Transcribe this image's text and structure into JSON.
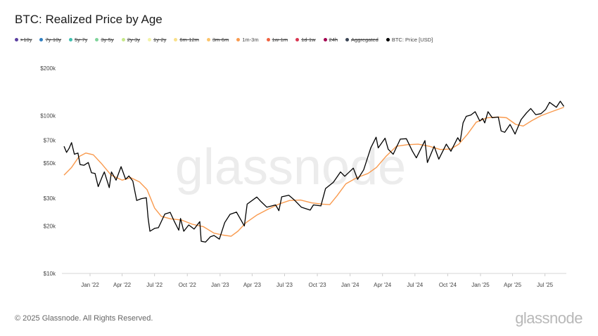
{
  "title": "BTC: Realized Price by Age",
  "legend": [
    {
      "label": ">10y",
      "color": "#5b3fa0",
      "enabled": false
    },
    {
      "label": "7y-10y",
      "color": "#2f7fc1",
      "enabled": false
    },
    {
      "label": "5y-7y",
      "color": "#3fbfae",
      "enabled": false
    },
    {
      "label": "3y-5y",
      "color": "#7fd49a",
      "enabled": false
    },
    {
      "label": "2y-3y",
      "color": "#c6e88a",
      "enabled": false
    },
    {
      "label": "1y-2y",
      "color": "#f3f3a8",
      "enabled": false
    },
    {
      "label": "6m-12m",
      "color": "#f9e08a",
      "enabled": false
    },
    {
      "label": "3m-6m",
      "color": "#fcc46a",
      "enabled": false
    },
    {
      "label": "1m-3m",
      "color": "#f99a4e",
      "enabled": true
    },
    {
      "label": "1w-1m",
      "color": "#f0623f",
      "enabled": false
    },
    {
      "label": "1d-1w",
      "color": "#d93550",
      "enabled": false
    },
    {
      "label": "24h",
      "color": "#a3004f",
      "enabled": false
    },
    {
      "label": "Aggregated",
      "color": "#3b4555",
      "enabled": false
    },
    {
      "label": "BTC: Price [USD]",
      "color": "#000000",
      "enabled": true
    }
  ],
  "watermark": "glassnode",
  "footer": {
    "copyright": "© 2025 Glassnode. All Rights Reserved.",
    "logo": "glassnode"
  },
  "chart_data": {
    "type": "line",
    "title": "BTC: Realized Price by Age",
    "yscale": "log",
    "ylim": [
      10000,
      200000
    ],
    "xlim": [
      "2021-10-14",
      "2025-08-30"
    ],
    "grid": false,
    "legend_position": "top-left",
    "y_ticks": [
      {
        "value": 10000,
        "label": "$10k"
      },
      {
        "value": 20000,
        "label": "$20k"
      },
      {
        "value": 30000,
        "label": "$30k"
      },
      {
        "value": 50000,
        "label": "$50k"
      },
      {
        "value": 70000,
        "label": "$70k"
      },
      {
        "value": 100000,
        "label": "$100k"
      },
      {
        "value": 200000,
        "label": "$200k"
      }
    ],
    "x_ticks": [
      {
        "value": "2022-01-01",
        "label": "Jan '22"
      },
      {
        "value": "2022-04-01",
        "label": "Apr '22"
      },
      {
        "value": "2022-07-01",
        "label": "Jul '22"
      },
      {
        "value": "2022-10-01",
        "label": "Oct '22"
      },
      {
        "value": "2023-01-01",
        "label": "Jan '23"
      },
      {
        "value": "2023-04-01",
        "label": "Apr '23"
      },
      {
        "value": "2023-07-01",
        "label": "Jul '23"
      },
      {
        "value": "2023-10-01",
        "label": "Oct '23"
      },
      {
        "value": "2024-01-01",
        "label": "Jan '24"
      },
      {
        "value": "2024-04-01",
        "label": "Apr '24"
      },
      {
        "value": "2024-07-01",
        "label": "Jul '24"
      },
      {
        "value": "2024-10-01",
        "label": "Oct '24"
      },
      {
        "value": "2025-01-01",
        "label": "Jan '25"
      },
      {
        "value": "2025-04-01",
        "label": "Apr '25"
      },
      {
        "value": "2025-07-01",
        "label": "Jul '25"
      }
    ],
    "series": [
      {
        "name": "1m-3m",
        "color": "#f99a4e",
        "points": [
          [
            "2021-10-20",
            42000
          ],
          [
            "2021-11-10",
            47000
          ],
          [
            "2021-12-01",
            55000
          ],
          [
            "2021-12-20",
            58000
          ],
          [
            "2022-01-10",
            56500
          ],
          [
            "2022-02-01",
            50000
          ],
          [
            "2022-03-01",
            42000
          ],
          [
            "2022-04-01",
            39000
          ],
          [
            "2022-04-25",
            40500
          ],
          [
            "2022-05-20",
            38000
          ],
          [
            "2022-06-10",
            34000
          ],
          [
            "2022-07-01",
            26000
          ],
          [
            "2022-07-20",
            23000
          ],
          [
            "2022-08-15",
            22200
          ],
          [
            "2022-09-15",
            21800
          ],
          [
            "2022-10-15",
            20500
          ],
          [
            "2022-11-15",
            19800
          ],
          [
            "2022-12-15",
            18000
          ],
          [
            "2023-01-10",
            17500
          ],
          [
            "2023-02-01",
            17200
          ],
          [
            "2023-02-20",
            18500
          ],
          [
            "2023-03-15",
            21000
          ],
          [
            "2023-04-15",
            23500
          ],
          [
            "2023-05-15",
            25500
          ],
          [
            "2023-06-15",
            27500
          ],
          [
            "2023-07-15",
            29000
          ],
          [
            "2023-08-15",
            29200
          ],
          [
            "2023-09-15",
            28000
          ],
          [
            "2023-10-15",
            27500
          ],
          [
            "2023-11-05",
            27300
          ],
          [
            "2023-11-25",
            31000
          ],
          [
            "2023-12-20",
            37000
          ],
          [
            "2024-01-20",
            40500
          ],
          [
            "2024-02-20",
            43000
          ],
          [
            "2024-03-15",
            47000
          ],
          [
            "2024-04-10",
            55000
          ],
          [
            "2024-05-10",
            64000
          ],
          [
            "2024-06-10",
            65500
          ],
          [
            "2024-07-10",
            66000
          ],
          [
            "2024-08-10",
            64000
          ],
          [
            "2024-09-10",
            61000
          ],
          [
            "2024-10-10",
            61500
          ],
          [
            "2024-11-01",
            66000
          ],
          [
            "2024-11-25",
            76000
          ],
          [
            "2024-12-20",
            91000
          ],
          [
            "2025-01-20",
            97000
          ],
          [
            "2025-02-20",
            98000
          ],
          [
            "2025-03-15",
            97000
          ],
          [
            "2025-04-10",
            88000
          ],
          [
            "2025-05-01",
            86000
          ],
          [
            "2025-05-25",
            93000
          ],
          [
            "2025-06-20",
            100000
          ],
          [
            "2025-07-20",
            106000
          ],
          [
            "2025-08-23",
            113000
          ]
        ]
      },
      {
        "name": "BTC: Price [USD]",
        "color": "#000000",
        "points": [
          [
            "2021-10-20",
            64000
          ],
          [
            "2021-10-27",
            58500
          ],
          [
            "2021-11-03",
            62000
          ],
          [
            "2021-11-10",
            67500
          ],
          [
            "2021-11-18",
            57000
          ],
          [
            "2021-11-28",
            58000
          ],
          [
            "2021-12-04",
            49000
          ],
          [
            "2021-12-15",
            48500
          ],
          [
            "2021-12-27",
            50500
          ],
          [
            "2022-01-05",
            43500
          ],
          [
            "2022-01-15",
            43000
          ],
          [
            "2022-01-24",
            35500
          ],
          [
            "2022-02-05",
            41500
          ],
          [
            "2022-02-10",
            44000
          ],
          [
            "2022-02-24",
            35000
          ],
          [
            "2022-03-02",
            44000
          ],
          [
            "2022-03-15",
            39000
          ],
          [
            "2022-03-29",
            47500
          ],
          [
            "2022-04-11",
            39500
          ],
          [
            "2022-04-20",
            41500
          ],
          [
            "2022-05-01",
            38500
          ],
          [
            "2022-05-12",
            29000
          ],
          [
            "2022-05-25",
            29800
          ],
          [
            "2022-06-08",
            30200
          ],
          [
            "2022-06-13",
            22500
          ],
          [
            "2022-06-18",
            18500
          ],
          [
            "2022-07-01",
            19300
          ],
          [
            "2022-07-12",
            19500
          ],
          [
            "2022-07-30",
            23800
          ],
          [
            "2022-08-14",
            24400
          ],
          [
            "2022-08-25",
            21500
          ],
          [
            "2022-09-07",
            18800
          ],
          [
            "2022-09-12",
            22300
          ],
          [
            "2022-09-21",
            18500
          ],
          [
            "2022-10-05",
            20300
          ],
          [
            "2022-10-20",
            19100
          ],
          [
            "2022-11-05",
            21300
          ],
          [
            "2022-11-09",
            16000
          ],
          [
            "2022-11-21",
            15800
          ],
          [
            "2022-12-05",
            17100
          ],
          [
            "2022-12-15",
            17400
          ],
          [
            "2022-12-30",
            16500
          ],
          [
            "2023-01-14",
            21000
          ],
          [
            "2023-01-29",
            23700
          ],
          [
            "2023-02-16",
            24500
          ],
          [
            "2023-03-10",
            20000
          ],
          [
            "2023-03-18",
            27500
          ],
          [
            "2023-04-14",
            30500
          ],
          [
            "2023-04-26",
            28500
          ],
          [
            "2023-05-12",
            26300
          ],
          [
            "2023-06-06",
            27200
          ],
          [
            "2023-06-15",
            25000
          ],
          [
            "2023-06-23",
            30600
          ],
          [
            "2023-07-13",
            31300
          ],
          [
            "2023-07-28",
            29300
          ],
          [
            "2023-08-17",
            26300
          ],
          [
            "2023-09-11",
            25200
          ],
          [
            "2023-09-20",
            27200
          ],
          [
            "2023-10-11",
            26800
          ],
          [
            "2023-10-24",
            34500
          ],
          [
            "2023-11-15",
            37800
          ],
          [
            "2023-12-05",
            44000
          ],
          [
            "2023-12-17",
            41300
          ],
          [
            "2024-01-10",
            46500
          ],
          [
            "2024-01-22",
            39500
          ],
          [
            "2024-02-08",
            45300
          ],
          [
            "2024-02-28",
            62500
          ],
          [
            "2024-03-14",
            73000
          ],
          [
            "2024-03-20",
            62500
          ],
          [
            "2024-04-08",
            72000
          ],
          [
            "2024-04-17",
            61300
          ],
          [
            "2024-05-01",
            57000
          ],
          [
            "2024-05-21",
            71000
          ],
          [
            "2024-06-07",
            71500
          ],
          [
            "2024-06-24",
            59500
          ],
          [
            "2024-07-05",
            54000
          ],
          [
            "2024-07-29",
            69500
          ],
          [
            "2024-08-05",
            50500
          ],
          [
            "2024-08-24",
            64000
          ],
          [
            "2024-09-06",
            53000
          ],
          [
            "2024-09-27",
            66000
          ],
          [
            "2024-10-10",
            59500
          ],
          [
            "2024-10-29",
            72500
          ],
          [
            "2024-11-05",
            68500
          ],
          [
            "2024-11-13",
            90000
          ],
          [
            "2024-11-22",
            99000
          ],
          [
            "2024-12-05",
            101000
          ],
          [
            "2024-12-17",
            106000
          ],
          [
            "2024-12-30",
            92500
          ],
          [
            "2025-01-07",
            96000
          ],
          [
            "2025-01-13",
            90000
          ],
          [
            "2025-01-22",
            106000
          ],
          [
            "2025-02-03",
            97000
          ],
          [
            "2025-02-20",
            98000
          ],
          [
            "2025-02-28",
            80000
          ],
          [
            "2025-03-10",
            78500
          ],
          [
            "2025-03-25",
            88000
          ],
          [
            "2025-04-08",
            76500
          ],
          [
            "2025-04-25",
            94500
          ],
          [
            "2025-05-10",
            104000
          ],
          [
            "2025-05-22",
            111000
          ],
          [
            "2025-06-05",
            101500
          ],
          [
            "2025-06-20",
            103000
          ],
          [
            "2025-07-03",
            109500
          ],
          [
            "2025-07-14",
            121500
          ],
          [
            "2025-07-24",
            117000
          ],
          [
            "2025-08-02",
            113000
          ],
          [
            "2025-08-13",
            123500
          ],
          [
            "2025-08-23",
            114500
          ]
        ]
      }
    ]
  }
}
